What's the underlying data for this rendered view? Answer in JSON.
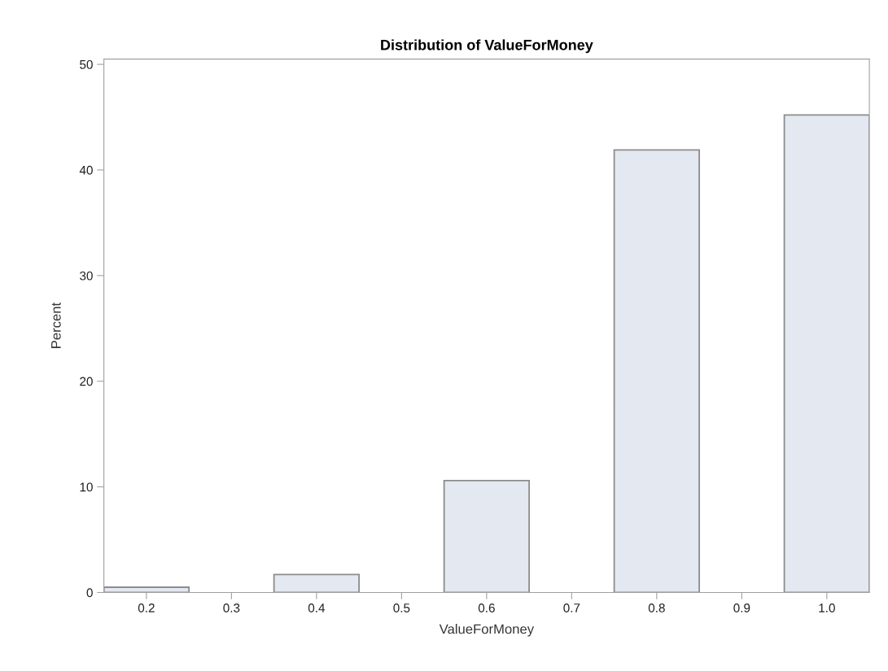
{
  "chart_data": {
    "type": "histogram",
    "title": "Distribution of ValueForMoney",
    "xlabel": "ValueForMoney",
    "ylabel": "Percent",
    "bins": [
      0.15,
      0.25,
      0.35,
      0.45,
      0.55,
      0.65,
      0.75,
      0.85,
      0.95,
      1.05
    ],
    "values": [
      0.5,
      0,
      1.7,
      0,
      10.6,
      0,
      41.9,
      0,
      45.2
    ],
    "color": "#e3e8f1",
    "xlim": [
      0.15,
      1.05
    ],
    "xticks": [
      0.2,
      0.3,
      0.4,
      0.5,
      0.6,
      0.7,
      0.8,
      0.9,
      {
        "value": 1.0,
        "label": "1.0"
      }
    ],
    "ylim": [
      0,
      50.5
    ],
    "yticks": [
      0,
      10,
      20,
      30,
      40,
      50
    ],
    "grid": false
  }
}
